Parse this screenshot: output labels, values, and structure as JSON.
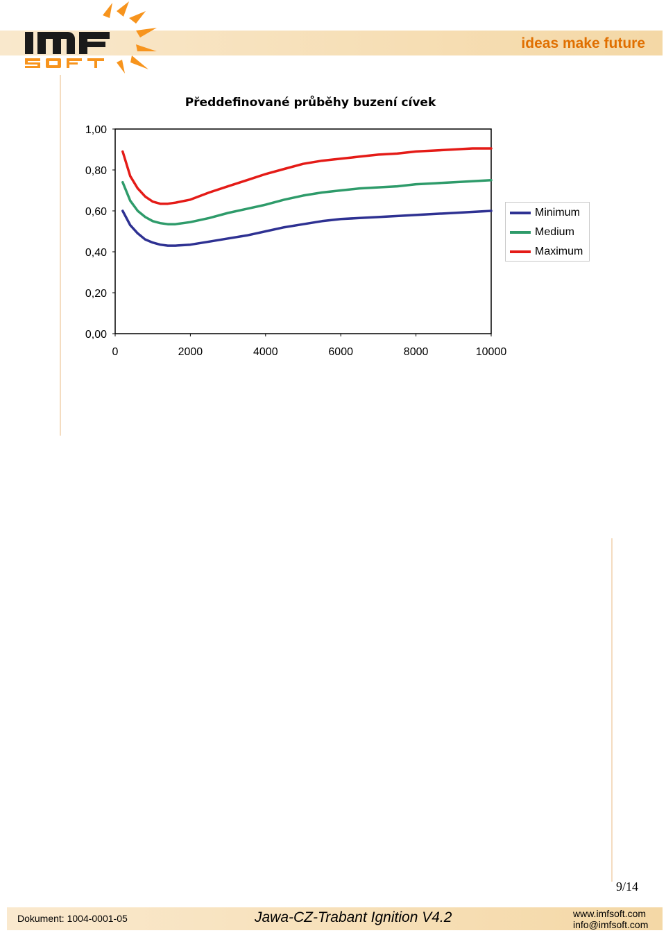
{
  "header": {
    "logo_text": "IMF SOFT",
    "tagline": "ideas make future"
  },
  "colors": {
    "accent": "#e06f00",
    "band": "#f4d8a6",
    "minimum": "#2e3192",
    "medium": "#2e9b6a",
    "maximum": "#e41b17"
  },
  "chart_data": {
    "type": "line",
    "title": "Předdefinované průběhy buzení cívek",
    "xlabel": "",
    "ylabel": "",
    "xlim": [
      0,
      10000
    ],
    "ylim": [
      0,
      1
    ],
    "x_ticks": [
      "0",
      "2000",
      "4000",
      "6000",
      "8000",
      "10000"
    ],
    "y_ticks": [
      "0,00",
      "0,20",
      "0,40",
      "0,60",
      "0,80",
      "1,00"
    ],
    "legend_position": "right",
    "grid": false,
    "x": [
      200,
      400,
      600,
      800,
      1000,
      1200,
      1400,
      1600,
      2000,
      2500,
      3000,
      3500,
      4000,
      4500,
      5000,
      5500,
      6000,
      6500,
      7000,
      7500,
      8000,
      8500,
      9000,
      9500,
      10000
    ],
    "series": [
      {
        "name": "Minimum",
        "color": "#2e3192",
        "values": [
          0.6,
          0.53,
          0.49,
          0.46,
          0.445,
          0.435,
          0.43,
          0.43,
          0.435,
          0.45,
          0.465,
          0.48,
          0.5,
          0.52,
          0.535,
          0.55,
          0.56,
          0.565,
          0.57,
          0.575,
          0.58,
          0.585,
          0.59,
          0.595,
          0.6
        ]
      },
      {
        "name": "Medium",
        "color": "#2e9b6a",
        "values": [
          0.74,
          0.65,
          0.6,
          0.57,
          0.55,
          0.54,
          0.535,
          0.535,
          0.545,
          0.565,
          0.59,
          0.61,
          0.63,
          0.655,
          0.675,
          0.69,
          0.7,
          0.71,
          0.715,
          0.72,
          0.73,
          0.735,
          0.74,
          0.745,
          0.75
        ]
      },
      {
        "name": "Maximum",
        "color": "#e41b17",
        "values": [
          0.89,
          0.77,
          0.71,
          0.67,
          0.645,
          0.635,
          0.635,
          0.64,
          0.655,
          0.69,
          0.72,
          0.75,
          0.78,
          0.805,
          0.83,
          0.845,
          0.855,
          0.865,
          0.875,
          0.88,
          0.89,
          0.895,
          0.9,
          0.905,
          0.905
        ]
      }
    ]
  },
  "page": {
    "number": "9/14"
  },
  "footer": {
    "document": "Dokument: 1004-0001-05",
    "title": "Jawa-CZ-Trabant Ignition V4.2",
    "website": "www.imfsoft.com",
    "email": "info@imfsoft.com"
  }
}
